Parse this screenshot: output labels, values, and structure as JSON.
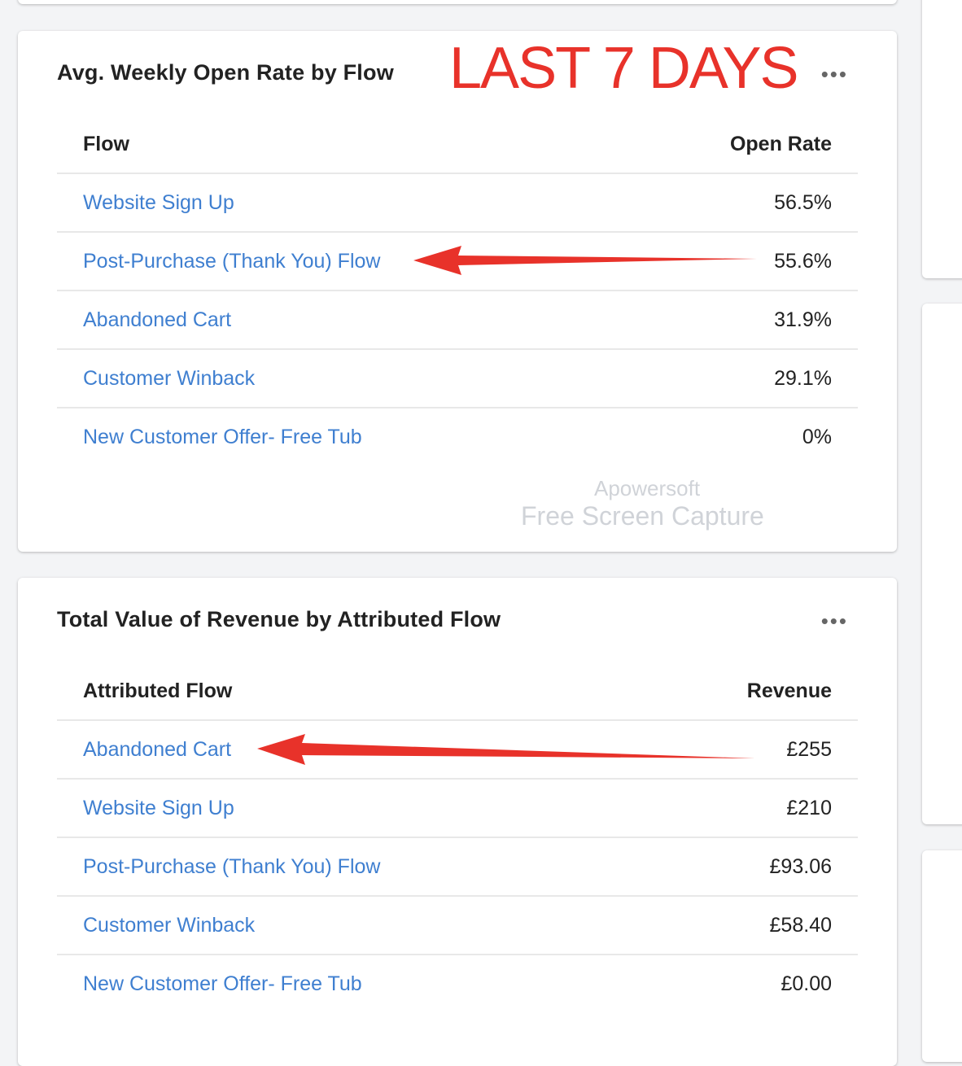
{
  "open_rate_card": {
    "title": "Avg. Weekly Open Rate by Flow",
    "menu": "•••",
    "columns": [
      "Flow",
      "Open Rate"
    ],
    "rows": [
      {
        "flow": "Website Sign Up",
        "value": "56.5%"
      },
      {
        "flow": "Post-Purchase (Thank You) Flow",
        "value": "55.6%"
      },
      {
        "flow": "Abandoned Cart",
        "value": "31.9%"
      },
      {
        "flow": "Customer Winback",
        "value": "29.1%"
      },
      {
        "flow": "New Customer Offer- Free Tub",
        "value": "0%"
      }
    ]
  },
  "revenue_card": {
    "title": "Total Value of Revenue by Attributed Flow",
    "menu": "•••",
    "columns": [
      "Attributed Flow",
      "Revenue"
    ],
    "rows": [
      {
        "flow": "Abandoned Cart",
        "value": "£255"
      },
      {
        "flow": "Website Sign Up",
        "value": "£210"
      },
      {
        "flow": "Post-Purchase (Thank You) Flow",
        "value": "£93.06"
      },
      {
        "flow": "Customer Winback",
        "value": "£58.40"
      },
      {
        "flow": "New Customer Offer- Free Tub",
        "value": "£0.00"
      }
    ]
  },
  "annotation": {
    "text": "LAST 7 DAYS",
    "color": "#e8322a"
  },
  "watermark": {
    "line1": "Apowersoft",
    "line2": "Free Screen Capture"
  },
  "colors": {
    "link": "#3f7fd0",
    "arrow": "#e8322a"
  }
}
